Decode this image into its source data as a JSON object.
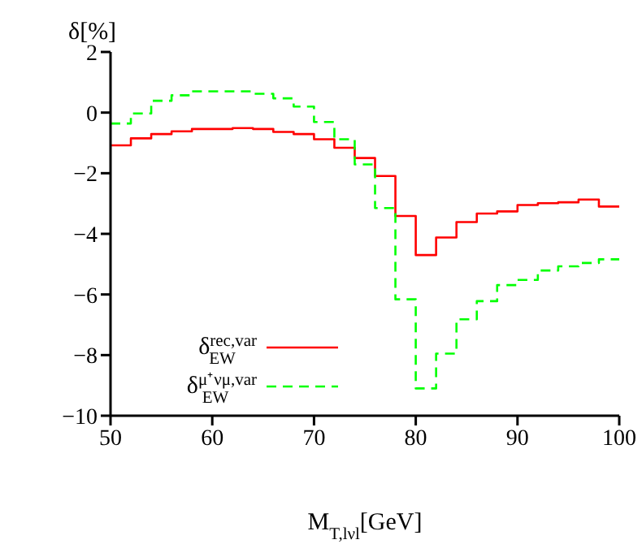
{
  "chart_data": {
    "type": "step",
    "xlabel": "M$_{T,lνl}$[GeV]",
    "ylabel": "δ[%]",
    "x": [
      50,
      52,
      54,
      56,
      58,
      60,
      62,
      64,
      66,
      68,
      70,
      72,
      74,
      76,
      78,
      80,
      82,
      84,
      86,
      88,
      90,
      92,
      94,
      96,
      98,
      100
    ],
    "series": [
      {
        "name": "δ$^{rec,var}$$_{EW}$",
        "color": "#ff0000",
        "line_style": "solid",
        "values": [
          -1.08,
          -0.85,
          -0.71,
          -0.62,
          -0.54,
          -0.54,
          -0.51,
          -0.54,
          -0.64,
          -0.71,
          -0.88,
          -1.16,
          -1.5,
          -2.09,
          -3.41,
          -4.7,
          -4.12,
          -3.61,
          -3.33,
          -3.26,
          -3.05,
          -2.99,
          -2.96,
          -2.87,
          -3.1,
          -3.1
        ]
      },
      {
        "name": "δ$^{μ⁺νμ,var}$$_{EW}$",
        "color": "#00ff00",
        "line_style": "dashed",
        "values": [
          -0.36,
          -0.03,
          0.39,
          0.57,
          0.7,
          0.7,
          0.7,
          0.62,
          0.47,
          0.2,
          -0.31,
          -0.88,
          -1.71,
          -3.15,
          -6.16,
          -9.1,
          -7.95,
          -6.82,
          -6.22,
          -5.69,
          -5.52,
          -5.21,
          -5.07,
          -4.96,
          -4.84,
          -4.84
        ]
      }
    ],
    "xlim": [
      50,
      100
    ],
    "xticks": [
      50,
      60,
      70,
      80,
      90,
      100
    ],
    "ylim": [
      -10,
      2
    ],
    "yticks": [
      -10,
      -8,
      -6,
      -4,
      -2,
      0,
      2
    ],
    "grid": false,
    "legend": "bottom left",
    "marker": "none"
  }
}
